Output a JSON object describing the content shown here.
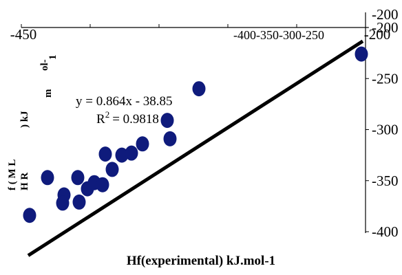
{
  "chart_data": {
    "type": "scatter",
    "xlabel": "Hf(experimental) kJ.mol-1",
    "ylabel_lines": [
      "f ( M L",
      "H R",
      ") kJ",
      "m",
      "ol-",
      "1"
    ],
    "xlim": [
      -450,
      -200
    ],
    "ylim": [
      -400,
      -200
    ],
    "x_ticks_labels": [
      "-450",
      "-400-350-300-250",
      "-200"
    ],
    "y_ticks_labels": [
      "-200",
      "-250",
      "-300",
      "-350",
      "-400"
    ],
    "top_right_label": "-200",
    "marker_color": "#0f1b7c",
    "line_color": "#000000",
    "trendline": {
      "equation": "y = 0.864x - 38.85",
      "r2_prefix": "R",
      "r2_sup": "2",
      "r2_value": "= 0.9818",
      "x_range": [
        -445,
        -202
      ]
    },
    "points": [
      {
        "x": -444,
        "y": -384
      },
      {
        "x": -431,
        "y": -347
      },
      {
        "x": -419,
        "y": -364
      },
      {
        "x": -420,
        "y": -372
      },
      {
        "x": -409,
        "y": -347
      },
      {
        "x": -408,
        "y": -371
      },
      {
        "x": -402,
        "y": -358
      },
      {
        "x": -397,
        "y": -352
      },
      {
        "x": -391,
        "y": -354
      },
      {
        "x": -389,
        "y": -324
      },
      {
        "x": -384,
        "y": -339
      },
      {
        "x": -377,
        "y": -325
      },
      {
        "x": -370,
        "y": -323
      },
      {
        "x": -362,
        "y": -314
      },
      {
        "x": -344,
        "y": -291
      },
      {
        "x": -342,
        "y": -309
      },
      {
        "x": -321,
        "y": -260
      },
      {
        "x": -203,
        "y": -226
      }
    ]
  }
}
